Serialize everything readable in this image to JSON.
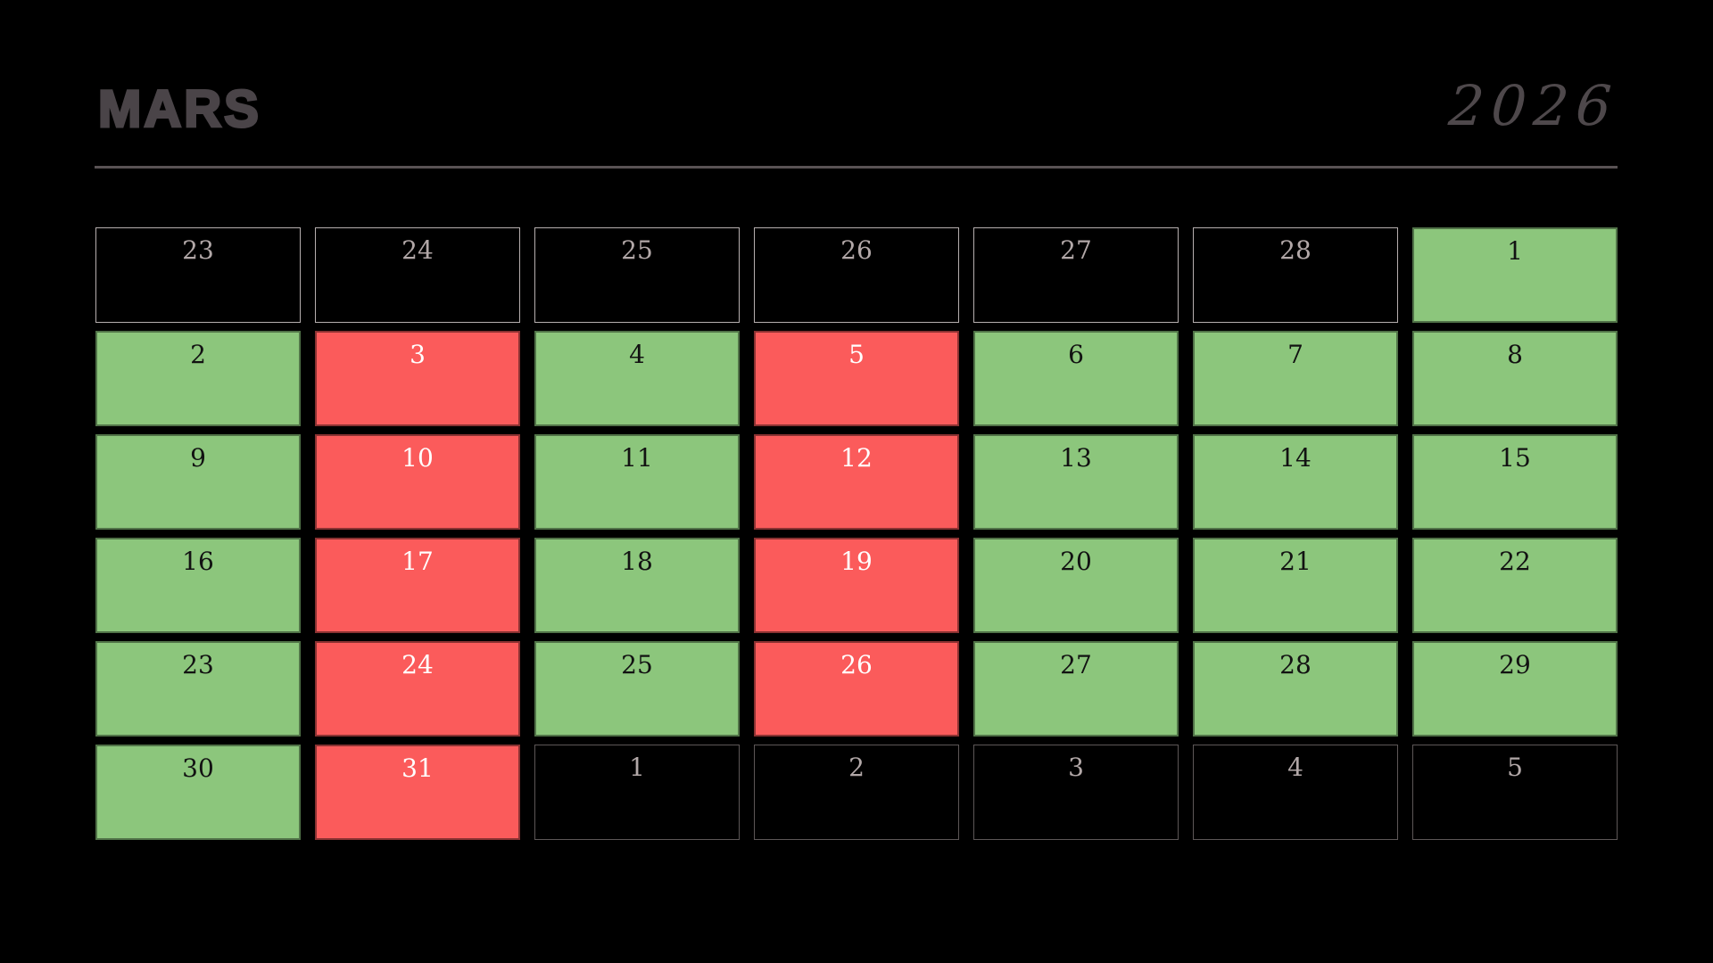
{
  "header": {
    "title": "MARS",
    "year": "2026"
  },
  "colors": {
    "background": "#000000",
    "title": "#4a4448",
    "year": "#4e484b",
    "rule": "#595254",
    "green": "#8cc67c",
    "red": "#fb5b5b",
    "green_text": "#121212",
    "red_text": "#ffffff",
    "outside_text": "#b2a8a8",
    "border_prev_month": "#b6afaf",
    "border_next_month": "#5d5757"
  },
  "weeks": [
    [
      {
        "day": "23",
        "type": "prev"
      },
      {
        "day": "24",
        "type": "prev"
      },
      {
        "day": "25",
        "type": "prev"
      },
      {
        "day": "26",
        "type": "prev"
      },
      {
        "day": "27",
        "type": "prev"
      },
      {
        "day": "28",
        "type": "prev"
      },
      {
        "day": "1",
        "type": "green"
      }
    ],
    [
      {
        "day": "2",
        "type": "green"
      },
      {
        "day": "3",
        "type": "red"
      },
      {
        "day": "4",
        "type": "green"
      },
      {
        "day": "5",
        "type": "red"
      },
      {
        "day": "6",
        "type": "green"
      },
      {
        "day": "7",
        "type": "green"
      },
      {
        "day": "8",
        "type": "green"
      }
    ],
    [
      {
        "day": "9",
        "type": "green"
      },
      {
        "day": "10",
        "type": "red"
      },
      {
        "day": "11",
        "type": "green"
      },
      {
        "day": "12",
        "type": "red"
      },
      {
        "day": "13",
        "type": "green"
      },
      {
        "day": "14",
        "type": "green"
      },
      {
        "day": "15",
        "type": "green"
      }
    ],
    [
      {
        "day": "16",
        "type": "green"
      },
      {
        "day": "17",
        "type": "red"
      },
      {
        "day": "18",
        "type": "green"
      },
      {
        "day": "19",
        "type": "red"
      },
      {
        "day": "20",
        "type": "green"
      },
      {
        "day": "21",
        "type": "green"
      },
      {
        "day": "22",
        "type": "green"
      }
    ],
    [
      {
        "day": "23",
        "type": "green"
      },
      {
        "day": "24",
        "type": "red"
      },
      {
        "day": "25",
        "type": "green"
      },
      {
        "day": "26",
        "type": "red"
      },
      {
        "day": "27",
        "type": "green"
      },
      {
        "day": "28",
        "type": "green"
      },
      {
        "day": "29",
        "type": "green"
      }
    ],
    [
      {
        "day": "30",
        "type": "green"
      },
      {
        "day": "31",
        "type": "red"
      },
      {
        "day": "1",
        "type": "next"
      },
      {
        "day": "2",
        "type": "next"
      },
      {
        "day": "3",
        "type": "next"
      },
      {
        "day": "4",
        "type": "next"
      },
      {
        "day": "5",
        "type": "next"
      }
    ]
  ]
}
